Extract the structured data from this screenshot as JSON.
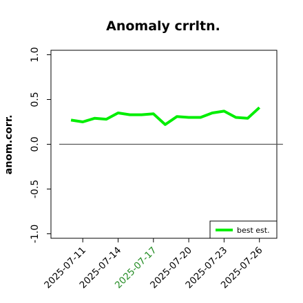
{
  "chart_data": {
    "type": "line",
    "title": "Anomaly crrltn.",
    "ylabel": "anom.corr.",
    "xlabel": "",
    "ylim": [
      -1.05,
      1.05
    ],
    "yticks": [
      "-1.0",
      "-0.5",
      "0.0",
      "0.5",
      "1.0"
    ],
    "ytick_values": [
      -1.0,
      -0.5,
      0.0,
      0.5,
      1.0
    ],
    "x": [
      "2025-07-09",
      "2025-07-10",
      "2025-07-11",
      "2025-07-12",
      "2025-07-13",
      "2025-07-14",
      "2025-07-15",
      "2025-07-16",
      "2025-07-17",
      "2025-07-18",
      "2025-07-19",
      "2025-07-20",
      "2025-07-21",
      "2025-07-22",
      "2025-07-23",
      "2025-07-24",
      "2025-07-25",
      "2025-07-26",
      "2025-07-27",
      "2025-07-28"
    ],
    "xticks": [
      {
        "label": "2025-07-11",
        "color": "#000000"
      },
      {
        "label": "2025-07-14",
        "color": "#000000"
      },
      {
        "label": "2025-07-17",
        "color": "#228b22"
      },
      {
        "label": "2025-07-20",
        "color": "#000000"
      },
      {
        "label": "2025-07-23",
        "color": "#000000"
      },
      {
        "label": "2025-07-26",
        "color": "#000000"
      }
    ],
    "series": [
      {
        "name": "best est.",
        "color": "#00ee00",
        "x": [
          "2025-07-10",
          "2025-07-11",
          "2025-07-12",
          "2025-07-13",
          "2025-07-14",
          "2025-07-15",
          "2025-07-16",
          "2025-07-17",
          "2025-07-18",
          "2025-07-19",
          "2025-07-20",
          "2025-07-21",
          "2025-07-22",
          "2025-07-23",
          "2025-07-24",
          "2025-07-25",
          "2025-07-26"
        ],
        "values": [
          0.27,
          0.25,
          0.29,
          0.28,
          0.35,
          0.33,
          0.33,
          0.34,
          0.22,
          0.31,
          0.3,
          0.3,
          0.35,
          0.37,
          0.3,
          0.29,
          0.41
        ]
      }
    ],
    "reference_line": {
      "y": 0.0,
      "color": "#555555"
    },
    "legend": {
      "position": "bottom-right"
    },
    "grid": false
  }
}
